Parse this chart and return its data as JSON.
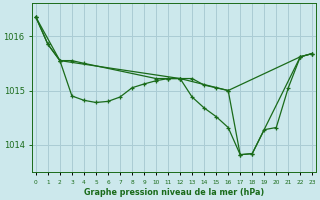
{
  "xlabel": "Graphe pression niveau de la mer (hPa)",
  "bg_color": "#cce8ec",
  "grid_color": "#aaccd4",
  "line_color": "#1a6b1a",
  "ylim": [
    1013.5,
    1016.6
  ],
  "yticks": [
    1014,
    1015,
    1016
  ],
  "xlim": [
    -0.3,
    23.3
  ],
  "x_ticks": [
    0,
    1,
    2,
    3,
    4,
    5,
    6,
    7,
    8,
    9,
    10,
    11,
    12,
    13,
    14,
    15,
    16,
    17,
    18,
    19,
    20,
    21,
    22,
    23
  ],
  "series1_x": [
    0,
    1,
    2,
    3,
    4,
    5,
    6,
    7,
    8,
    9,
    10,
    11,
    12,
    13,
    14,
    15,
    16,
    17,
    18,
    19,
    20,
    21,
    22,
    23
  ],
  "series1_y": [
    1016.35,
    1015.85,
    1015.55,
    1014.9,
    1014.82,
    1014.78,
    1014.8,
    1014.88,
    1015.05,
    1015.12,
    1015.18,
    1015.22,
    1015.22,
    1014.88,
    1014.68,
    1014.52,
    1014.32,
    1013.82,
    1013.84,
    1014.28,
    1014.32,
    1015.05,
    1015.62,
    1015.68
  ],
  "series2_x": [
    0,
    2,
    3,
    4,
    10,
    11,
    12,
    13,
    14,
    15,
    16,
    22,
    23
  ],
  "series2_y": [
    1016.35,
    1015.55,
    1015.55,
    1015.5,
    1015.22,
    1015.22,
    1015.22,
    1015.22,
    1015.1,
    1015.05,
    1015.0,
    1015.62,
    1015.68
  ],
  "series3_x": [
    0,
    1,
    2,
    12,
    16,
    17,
    18,
    22,
    23
  ],
  "series3_y": [
    1016.35,
    1015.85,
    1015.55,
    1015.22,
    1015.0,
    1013.82,
    1013.84,
    1015.62,
    1015.68
  ]
}
